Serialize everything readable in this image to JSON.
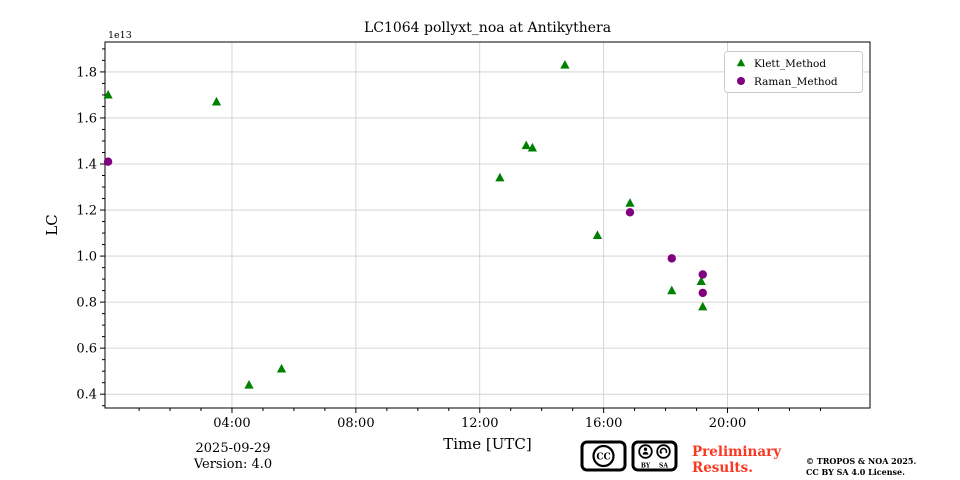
{
  "colors": {
    "background": "#ffffff",
    "grid": "#cccccc",
    "axis": "#000000",
    "legend_border": "#cccccc",
    "klett_green": "#008000",
    "raman_purple": "#800080",
    "preliminary_red": "#f93822"
  },
  "chart_data": {
    "type": "scatter",
    "title": "LC1064 pollyxt_noa at Antikythera",
    "xlabel": "Time [UTC]",
    "ylabel": "LC",
    "offset_text": "1e13",
    "grid": true,
    "legend_position": "upper right",
    "xlim": [
      -0.1,
      24.6
    ],
    "ylim": [
      0.34,
      1.93
    ],
    "x_major_ticks": [
      {
        "value": 4,
        "label": "04:00"
      },
      {
        "value": 8,
        "label": "08:00"
      },
      {
        "value": 12,
        "label": "12:00"
      },
      {
        "value": 16,
        "label": "16:00"
      },
      {
        "value": 20,
        "label": "20:00"
      }
    ],
    "x_minor_step_hours": 1,
    "y_major_ticks": [
      {
        "value": 0.4,
        "label": "0.4"
      },
      {
        "value": 0.6,
        "label": "0.6"
      },
      {
        "value": 0.8,
        "label": "0.8"
      },
      {
        "value": 1.0,
        "label": "1.0"
      },
      {
        "value": 1.2,
        "label": "1.2"
      },
      {
        "value": 1.4,
        "label": "1.4"
      },
      {
        "value": 1.6,
        "label": "1.6"
      },
      {
        "value": 1.8,
        "label": "1.8"
      }
    ],
    "y_minor_step": 0.05,
    "y_scale_factor": "1e13",
    "series": [
      {
        "name": "Klett_Method",
        "marker": "triangle",
        "color": "#008000",
        "points": [
          [
            0.0,
            1.7
          ],
          [
            3.5,
            1.67
          ],
          [
            4.55,
            0.44
          ],
          [
            5.6,
            0.51
          ],
          [
            12.65,
            1.34
          ],
          [
            13.5,
            1.48
          ],
          [
            13.7,
            1.47
          ],
          [
            14.75,
            1.83
          ],
          [
            15.8,
            1.09
          ],
          [
            16.85,
            1.23
          ],
          [
            18.2,
            0.85
          ],
          [
            19.15,
            0.89
          ],
          [
            19.2,
            0.78
          ]
        ]
      },
      {
        "name": "Raman_Method",
        "marker": "circle",
        "color": "#800080",
        "points": [
          [
            0.0,
            1.41
          ],
          [
            16.85,
            1.19
          ],
          [
            18.2,
            0.99
          ],
          [
            19.2,
            0.92
          ],
          [
            19.2,
            0.84
          ]
        ]
      }
    ]
  },
  "footer": {
    "date": "2025-09-29",
    "version": "Version: 4.0",
    "preliminary_line1": "Preliminary",
    "preliminary_line2": "Results.",
    "copyright_line1": "© TROPOS & NOA 2025.",
    "copyright_line2": "CC BY SA 4.0 License.",
    "cc_badge": {
      "cc_label": "CC",
      "by_label": "BY",
      "sa_label": "SA"
    }
  }
}
